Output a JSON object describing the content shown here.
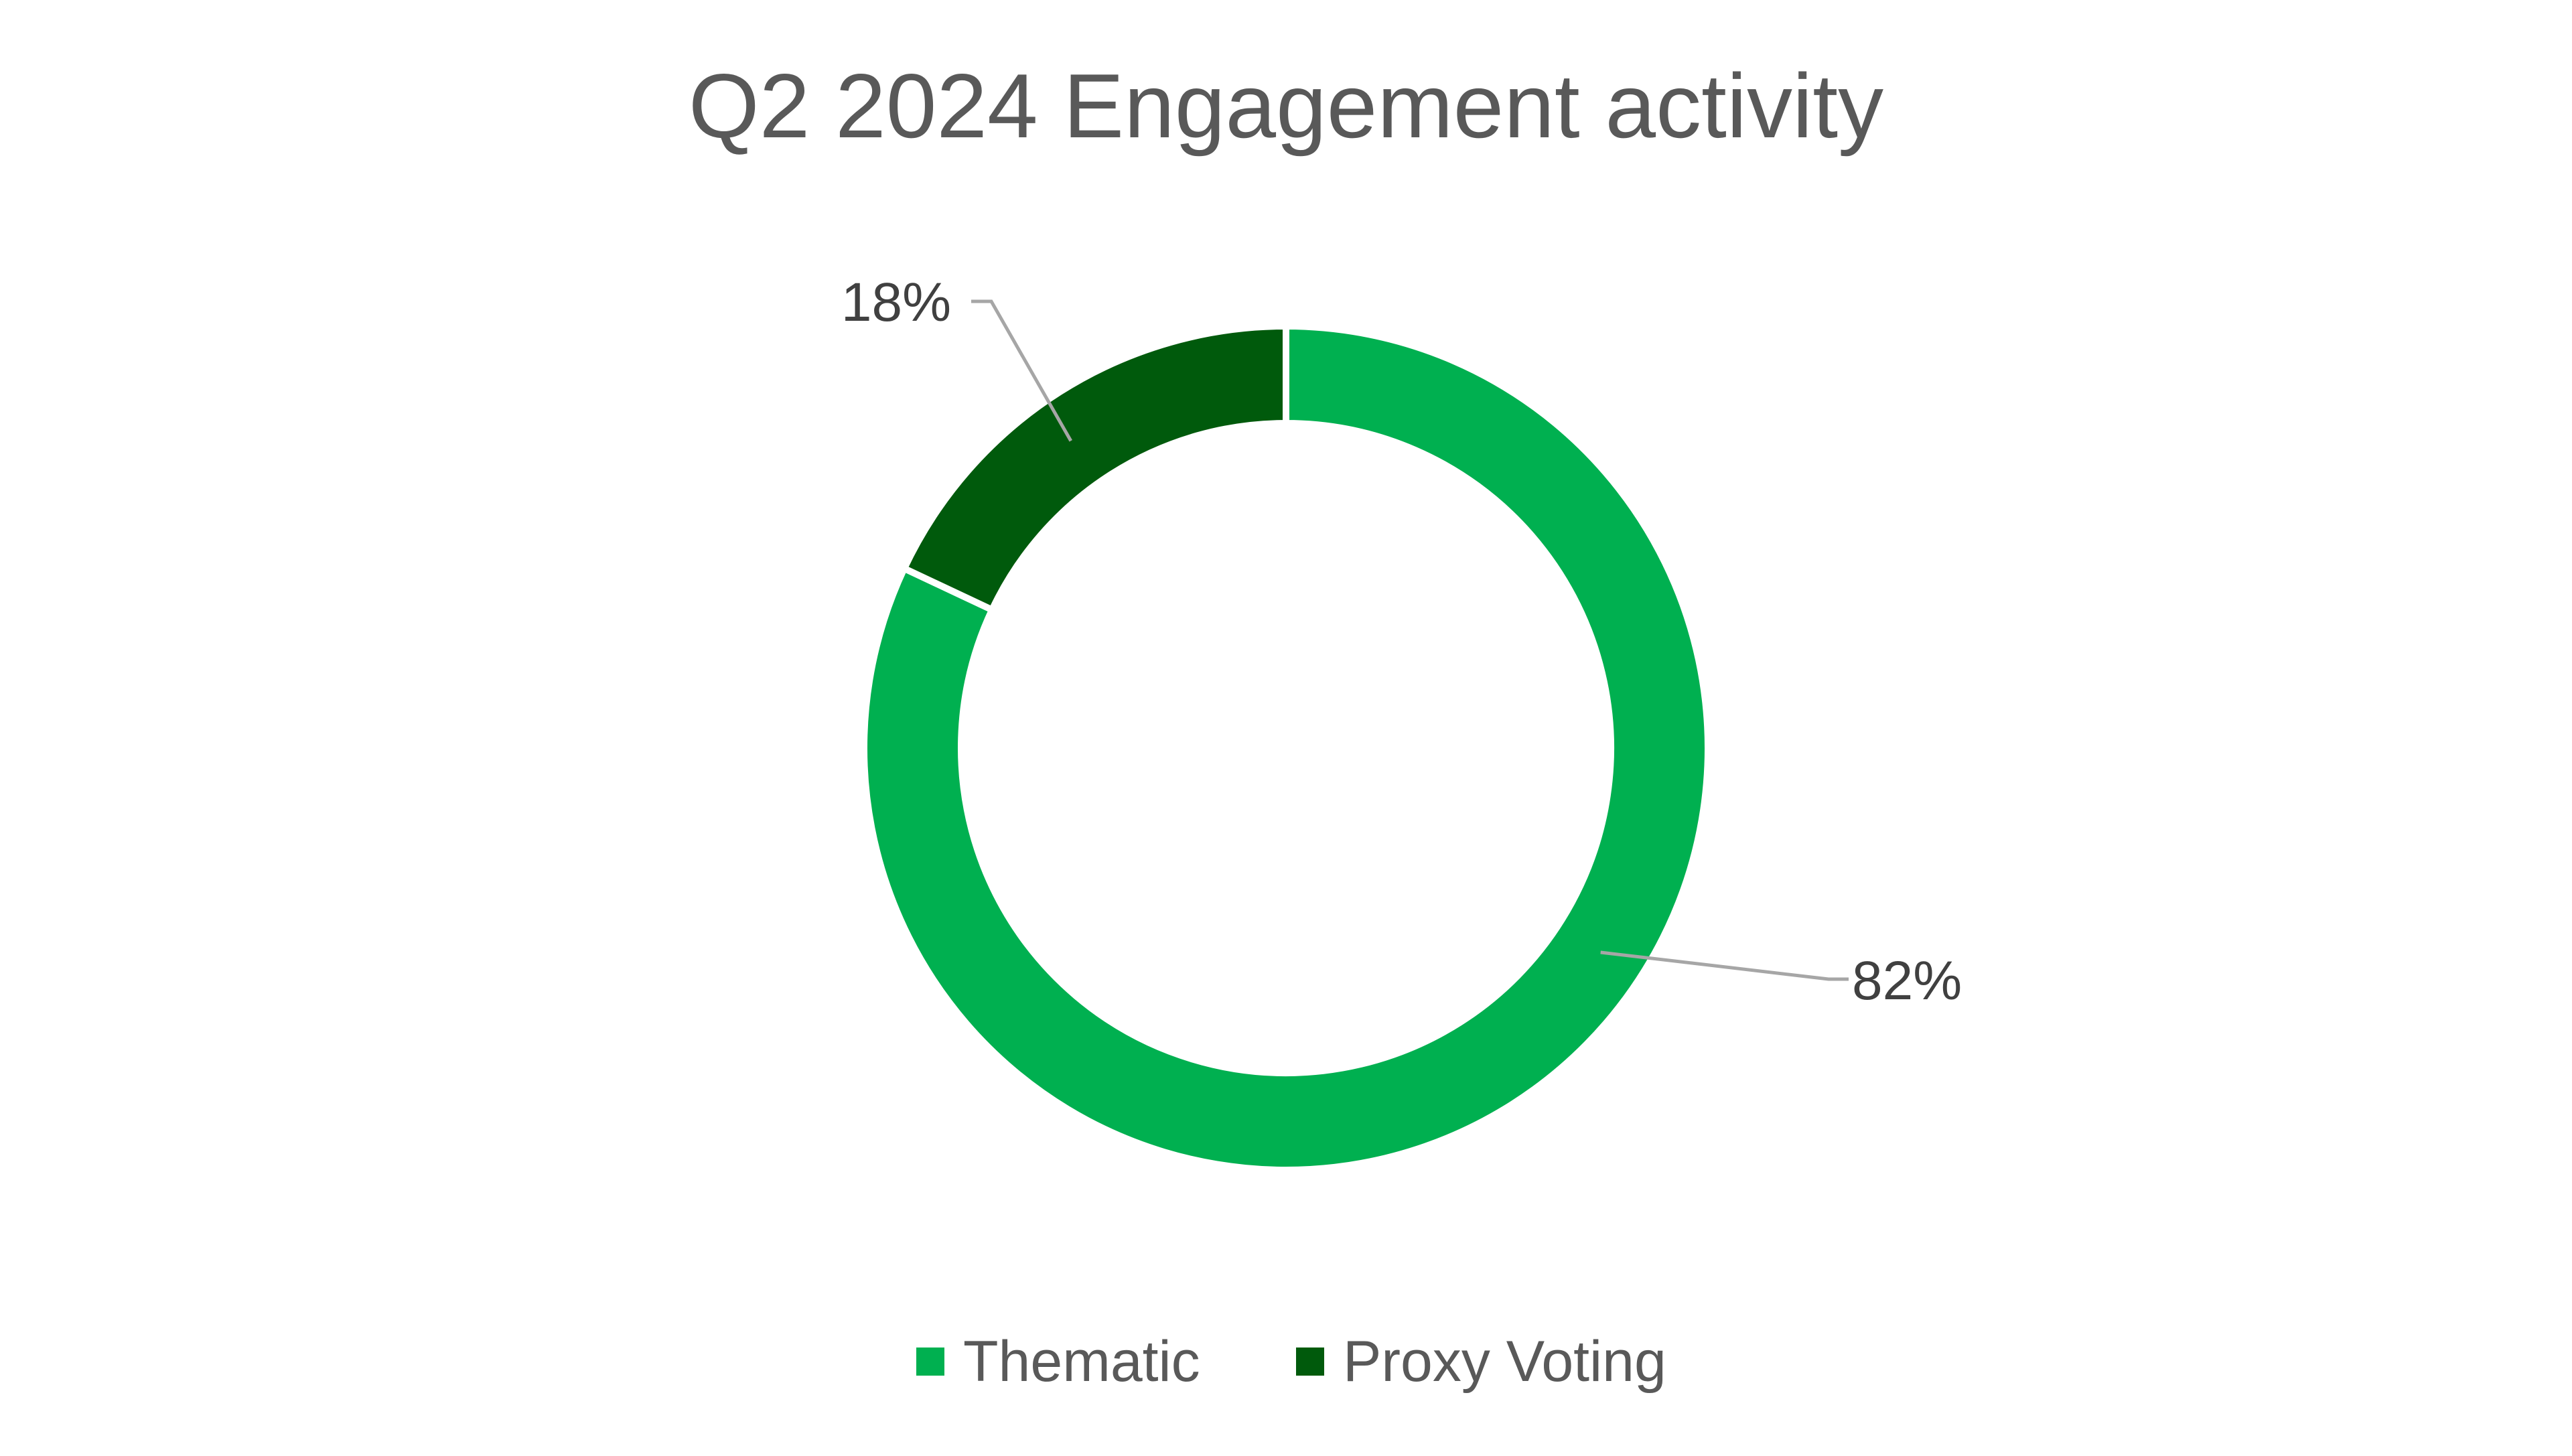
{
  "chart_data": {
    "type": "pie",
    "title": "Q2 2024 Engagement activity",
    "categories": [
      "Thematic",
      "Proxy Voting"
    ],
    "values": [
      82,
      18
    ],
    "labels": [
      "82%",
      "18%"
    ],
    "unit": "%",
    "donut": true,
    "colors": [
      "#00B050",
      "#005A0C"
    ],
    "legend": {
      "placement": "bottom",
      "entries": [
        "Thematic",
        "Proxy Voting"
      ]
    }
  }
}
